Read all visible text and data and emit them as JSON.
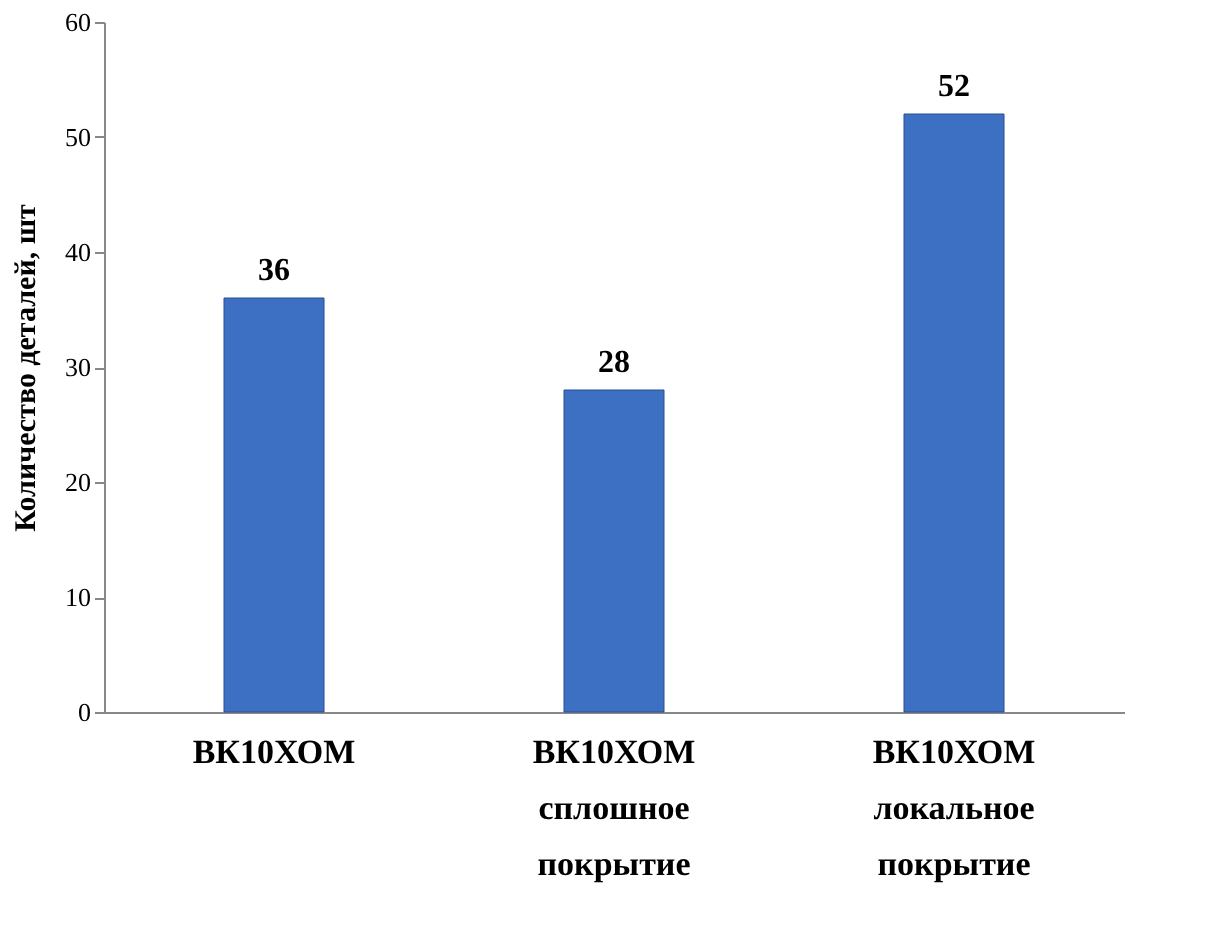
{
  "chart_data": {
    "type": "bar",
    "ylabel": "Количество деталей, шт",
    "categories": [
      "ВК10ХОМ",
      "ВК10ХОМ\nсплошное\nпокрытие",
      "ВК10ХОМ\nлокальное\nпокрытие"
    ],
    "values": [
      36,
      28,
      52
    ],
    "color": "#3d6fc2",
    "ylim": [
      0,
      60
    ],
    "yticks": [
      0,
      10,
      20,
      30,
      40,
      50,
      60
    ],
    "grid": false,
    "data_labels": true
  }
}
